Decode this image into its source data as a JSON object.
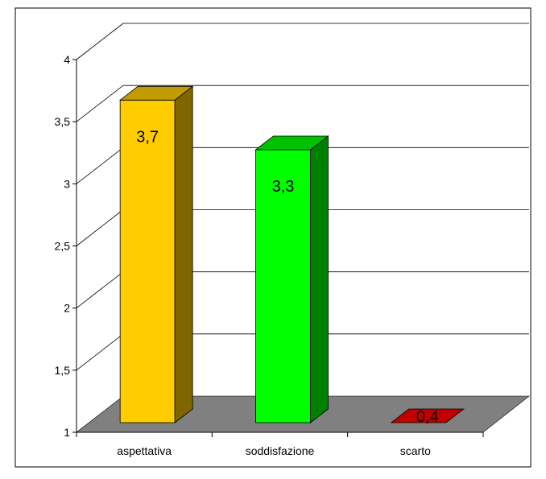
{
  "chart_data": {
    "type": "bar",
    "title": "",
    "xlabel": "",
    "ylabel": "",
    "categories": [
      "aspettativa",
      "soddisfazione",
      "scarto"
    ],
    "values": [
      3.7,
      3.3,
      0.4
    ],
    "value_labels": [
      "3,7",
      "3,3",
      "0,4"
    ],
    "ylim": [
      1,
      4
    ],
    "yticks": [
      "1",
      "1,5",
      "2",
      "2,5",
      "3",
      "3,5",
      "4"
    ],
    "ytick_values": [
      1,
      1.5,
      2,
      2.5,
      3,
      3.5,
      4
    ],
    "grid": true,
    "legend": "none",
    "style": "3d-column",
    "colors": {
      "floor": "#808080",
      "grid": "#000000",
      "bars": [
        {
          "front": "#ffcc00",
          "top": "#c29b00",
          "side": "#806600"
        },
        {
          "front": "#00ff00",
          "top": "#00c200",
          "side": "#008000"
        },
        {
          "front": "#ff0000",
          "top": "#c20000",
          "side": "#800000"
        }
      ]
    }
  }
}
